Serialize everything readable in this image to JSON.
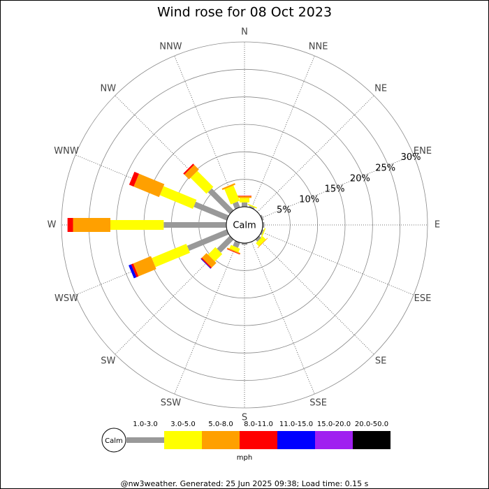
{
  "chart_data": {
    "type": "wind-rose",
    "title": "Wind rose for 08 Oct 2023",
    "directions": [
      "N",
      "NNE",
      "NE",
      "ENE",
      "E",
      "ESE",
      "SE",
      "SSE",
      "S",
      "SSW",
      "SW",
      "WSW",
      "W",
      "WNW",
      "NW",
      "NNW"
    ],
    "calm_label": "Calm",
    "rlim": [
      0,
      30
    ],
    "rticks": [
      {
        "value": 5,
        "label": "5%"
      },
      {
        "value": 10,
        "label": "10%"
      },
      {
        "value": 15,
        "label": "15%"
      },
      {
        "value": 20,
        "label": "20%"
      },
      {
        "value": 25,
        "label": "25%"
      },
      {
        "value": 30,
        "label": "30%"
      }
    ],
    "series": [
      {
        "name": "1.0-3.0",
        "color": "#999999",
        "values": [
          0.8,
          0.3,
          0,
          0.3,
          0.3,
          0.3,
          0.5,
          0,
          0.3,
          1.0,
          3.3,
          7.8,
          11.4,
          6.5,
          5.6,
          1.1
        ]
      },
      {
        "name": "3.0-5.0",
        "color": "#ffff00",
        "values": [
          0.8,
          0.2,
          0,
          0,
          0,
          0.2,
          0.8,
          0,
          0,
          0.7,
          1.9,
          6.8,
          9.7,
          6.5,
          4.1,
          3.0
        ]
      },
      {
        "name": "5.0-8.0",
        "color": "#ffa000",
        "values": [
          0.3,
          0,
          0,
          0,
          0,
          0,
          0.1,
          0,
          0,
          0.2,
          1.2,
          3.5,
          6.8,
          5.0,
          1.2,
          0.3
        ]
      },
      {
        "name": "8.0-11.0",
        "color": "#ff0000",
        "values": [
          0.1,
          0,
          0,
          0,
          0,
          0,
          0,
          0,
          0,
          0.1,
          0.2,
          0.4,
          1.0,
          0.9,
          0.3,
          0
        ]
      },
      {
        "name": "11.0-15.0",
        "color": "#0000ff",
        "values": [
          0,
          0,
          0,
          0,
          0,
          0,
          0,
          0,
          0,
          0,
          0.1,
          0.5,
          0,
          0,
          0,
          0
        ]
      },
      {
        "name": "15.0-20.0",
        "color": "#a020f0",
        "values": [
          0,
          0,
          0,
          0,
          0,
          0,
          0,
          0,
          0,
          0,
          0,
          0,
          0,
          0,
          0,
          0
        ]
      },
      {
        "name": "20.0-50.0",
        "color": "#000000",
        "values": [
          0,
          0,
          0,
          0,
          0,
          0,
          0,
          0,
          0,
          0,
          0,
          0,
          0,
          0,
          0,
          0
        ]
      }
    ],
    "units": "mph",
    "footer": "@nw3weather. Generated: 25 Jun 2025 09:38; Load time: 0.15 s"
  }
}
